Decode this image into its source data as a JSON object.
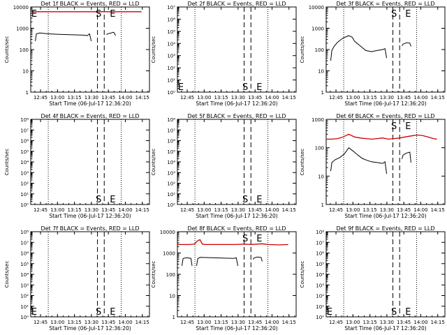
{
  "colors": {
    "events": "#000000",
    "lld": "#cc0000",
    "axis": "#000000",
    "background": "#ffffff"
  },
  "common": {
    "xlabel": "Start Time (06-Jul-17 12:36:20)",
    "ylabel": "Counts/sec",
    "x_tick_labels": [
      "12:45",
      "13:00",
      "13:15",
      "13:30",
      "13:45",
      "14:00",
      "14:15"
    ],
    "x_tick_minutes": [
      8.67,
      23.67,
      38.67,
      53.67,
      68.67,
      83.67,
      98.67
    ],
    "xlim_minutes": [
      0,
      105
    ],
    "dotted_minutes": [
      15.5,
      80
    ],
    "dashed_minutes": [
      59,
      65
    ],
    "marker_s_minutes": 60,
    "marker_e_minutes": 72.5,
    "marker_s": "S",
    "marker_e": "E"
  },
  "chart_data": [
    {
      "type": "line",
      "title": "Det 1f BLACK = Events, RED = LLD",
      "yscale": "log",
      "ylim": [
        1,
        10000
      ],
      "y_tick_labels": [
        "1",
        "10",
        "100",
        "1000",
        "10000"
      ],
      "y_tick_values": [
        1,
        10,
        100,
        1000,
        10000
      ],
      "marker_s_pos": "top",
      "marker_e_pos": "top",
      "marker_start": "E",
      "series": [
        {
          "role": "lld",
          "x": [
            0,
            5,
            10,
            20,
            30,
            40,
            50,
            60,
            70,
            80,
            90,
            98
          ],
          "y": [
            6000,
            6000,
            6000,
            6000,
            6000,
            6000,
            6000,
            6000,
            6000,
            6000,
            6000,
            6000
          ]
        },
        {
          "role": "events",
          "x": [
            4,
            5,
            8,
            15,
            25,
            35,
            45,
            48,
            50,
            52,
            53.5
          ],
          "y": [
            250,
            550,
            600,
            550,
            520,
            500,
            480,
            470,
            450,
            550,
            250
          ]
        },
        {
          "role": "events",
          "x": [
            67,
            68,
            71,
            73,
            74,
            75
          ],
          "y": [
            500,
            550,
            600,
            650,
            600,
            450
          ]
        }
      ]
    },
    {
      "type": "line",
      "title": "Det 2f BLACK = Events, RED = LLD",
      "yscale": "log",
      "ylim": [
        1,
        10000000
      ],
      "y_tick_labels": [
        "10⁰",
        "10¹",
        "10²",
        "10³",
        "10⁴",
        "10⁵",
        "10⁶",
        "10⁷"
      ],
      "y_tick_values": [
        1,
        10,
        100,
        1000,
        10000,
        100000,
        1000000,
        10000000
      ],
      "marker_s_pos": "bottom",
      "marker_e_pos": "bottom",
      "marker_start": "E",
      "series": []
    },
    {
      "type": "line",
      "title": "Det 3f BLACK = Events, RED = LLD",
      "yscale": "log",
      "ylim": [
        1,
        10000
      ],
      "y_tick_labels": [
        "1",
        "10",
        "100",
        "1000",
        "10000"
      ],
      "y_tick_values": [
        1,
        10,
        100,
        1000,
        10000
      ],
      "marker_s_pos": "top",
      "marker_e_pos": "top",
      "marker_start": "",
      "series": [
        {
          "role": "events",
          "x": [
            4,
            5,
            7,
            10,
            15,
            20,
            23,
            25,
            30,
            35,
            40,
            45,
            50,
            52,
            53.5
          ],
          "y": [
            30,
            90,
            140,
            220,
            350,
            450,
            380,
            250,
            150,
            90,
            80,
            90,
            100,
            110,
            40
          ]
        },
        {
          "role": "events",
          "x": [
            67,
            68,
            71,
            74,
            75
          ],
          "y": [
            150,
            180,
            210,
            200,
            140
          ]
        }
      ]
    },
    {
      "type": "line",
      "title": "Det 4f BLACK = Events, RED = LLD",
      "yscale": "log",
      "ylim": [
        1,
        100000000
      ],
      "y_tick_labels": [
        "10⁰",
        "10¹",
        "10²",
        "10³",
        "10⁴",
        "10⁵",
        "10⁶",
        "10⁷",
        "10⁸"
      ],
      "y_tick_values": [
        1,
        10,
        100,
        1000,
        10000,
        100000,
        1000000,
        10000000,
        100000000
      ],
      "marker_s_pos": "bottom",
      "marker_e_pos": "bottom",
      "marker_start": "",
      "series": []
    },
    {
      "type": "line",
      "title": "Det 5f BLACK = Events, RED = LLD",
      "yscale": "log",
      "ylim": [
        1,
        100000000
      ],
      "y_tick_labels": [
        "10⁰",
        "10¹",
        "10²",
        "10³",
        "10⁴",
        "10⁵",
        "10⁶",
        "10⁷",
        "10⁸"
      ],
      "y_tick_values": [
        1,
        10,
        100,
        1000,
        10000,
        100000,
        1000000,
        10000000,
        100000000
      ],
      "marker_s_pos": "bottom",
      "marker_e_pos": "bottom",
      "marker_start": "",
      "series": []
    },
    {
      "type": "line",
      "title": "Det 6f BLACK = Events, RED = LLD",
      "yscale": "log",
      "ylim": [
        1,
        1000
      ],
      "y_tick_labels": [
        "1",
        "10",
        "100",
        "1000"
      ],
      "y_tick_values": [
        1,
        10,
        100,
        1000
      ],
      "marker_s_pos": "top",
      "marker_e_pos": "top",
      "marker_start": "",
      "series": [
        {
          "role": "lld",
          "x": [
            0,
            5,
            10,
            15,
            20,
            25,
            30,
            35,
            40,
            45,
            50,
            55,
            60,
            65,
            70,
            75,
            80,
            85,
            90,
            95,
            98
          ],
          "y": [
            200,
            200,
            210,
            240,
            300,
            240,
            220,
            210,
            200,
            210,
            220,
            200,
            210,
            220,
            240,
            260,
            280,
            270,
            240,
            210,
            200
          ]
        },
        {
          "role": "events",
          "x": [
            4,
            5,
            8,
            12,
            16,
            20,
            24,
            28,
            32,
            36,
            40,
            45,
            50,
            52,
            53.5
          ],
          "y": [
            15,
            30,
            38,
            45,
            60,
            100,
            75,
            55,
            42,
            36,
            32,
            30,
            28,
            32,
            12
          ]
        },
        {
          "role": "events",
          "x": [
            67,
            68,
            71,
            74,
            75
          ],
          "y": [
            40,
            55,
            65,
            70,
            30
          ]
        }
      ]
    },
    {
      "type": "line",
      "title": "Det 7f BLACK = Events, RED = LLD",
      "yscale": "log",
      "ylim": [
        1,
        100000000
      ],
      "y_tick_labels": [
        "10⁰",
        "10¹",
        "10²",
        "10³",
        "10⁴",
        "10⁵",
        "10⁶",
        "10⁷",
        "10⁸"
      ],
      "y_tick_values": [
        1,
        10,
        100,
        1000,
        10000,
        100000,
        1000000,
        10000000,
        100000000
      ],
      "marker_s_pos": "bottom",
      "marker_e_pos": "bottom",
      "marker_start": "E",
      "series": []
    },
    {
      "type": "line",
      "title": "Det 8f BLACK = Events, RED = LLD",
      "yscale": "log",
      "ylim": [
        1,
        10000
      ],
      "y_tick_labels": [
        "1",
        "10",
        "100",
        "1000",
        "10000"
      ],
      "y_tick_values": [
        1,
        10,
        100,
        1000,
        10000
      ],
      "marker_s_pos": "top",
      "marker_e_pos": "top",
      "marker_start": "",
      "series": [
        {
          "role": "lld",
          "x": [
            0,
            5,
            10,
            15,
            18,
            20,
            22,
            24,
            30,
            40,
            50,
            60,
            65,
            70,
            75,
            80,
            90,
            98
          ],
          "y": [
            2500,
            2500,
            2500,
            2600,
            3800,
            4200,
            2600,
            2500,
            2500,
            2500,
            2500,
            2600,
            2500,
            2600,
            2700,
            2500,
            2400,
            2500
          ]
        },
        {
          "role": "events",
          "x": [
            4,
            5,
            8,
            12,
            13
          ],
          "y": [
            250,
            550,
            600,
            560,
            250
          ]
        },
        {
          "role": "events",
          "x": [
            17,
            18,
            20,
            30,
            40,
            50,
            52,
            53.5
          ],
          "y": [
            250,
            550,
            620,
            600,
            580,
            560,
            600,
            250
          ]
        },
        {
          "role": "events",
          "x": [
            67,
            68,
            71,
            74,
            75
          ],
          "y": [
            500,
            600,
            650,
            620,
            400
          ]
        }
      ]
    },
    {
      "type": "line",
      "title": "Det 9f BLACK = Events, RED = LLD",
      "yscale": "log",
      "ylim": [
        1,
        100000000
      ],
      "y_tick_labels": [
        "10⁰",
        "10¹",
        "10²",
        "10³",
        "10⁴",
        "10⁵",
        "10⁶",
        "10⁷",
        "10⁸"
      ],
      "y_tick_values": [
        1,
        10,
        100,
        1000,
        10000,
        100000,
        1000000,
        10000000,
        100000000
      ],
      "marker_s_pos": "bottom",
      "marker_e_pos": "bottom",
      "marker_start": "E",
      "series": []
    }
  ]
}
